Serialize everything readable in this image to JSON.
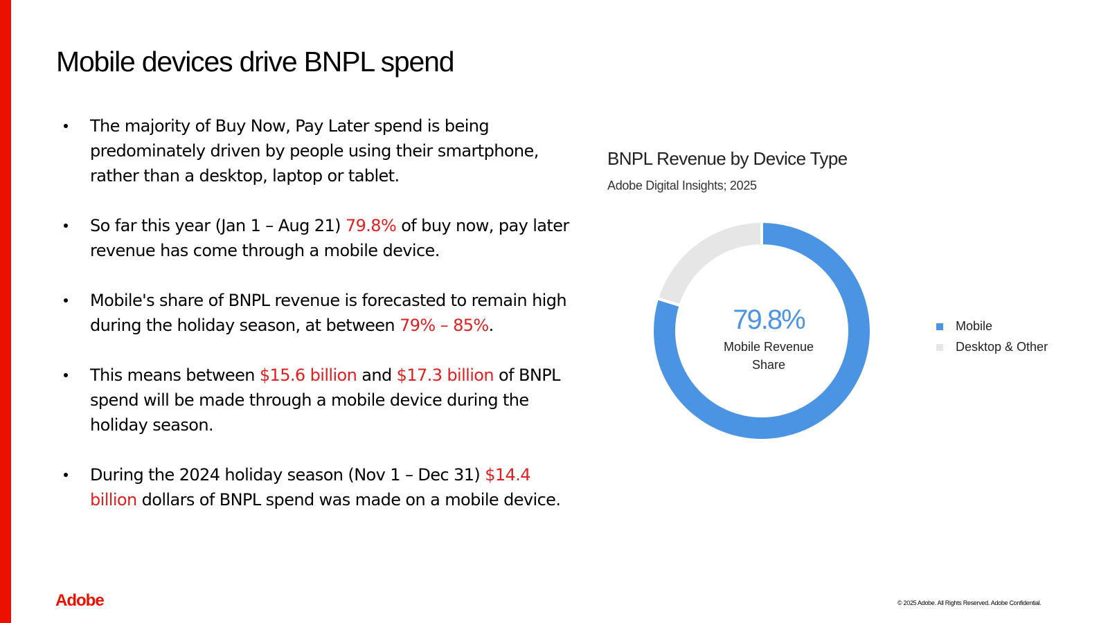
{
  "title": "Mobile devices drive BNPL spend",
  "colors": {
    "accent": "#eb1000",
    "highlight": "#e01f1f",
    "mobile": "#4b94e3",
    "desktop": "#e6e6e6"
  },
  "bullets": [
    {
      "parts": [
        {
          "t": "The majority of Buy Now, Pay Later spend is being predominately driven by people using their smartphone, rather than a desktop, laptop or tablet.",
          "hl": false
        }
      ]
    },
    {
      "parts": [
        {
          "t": "So far this year (Jan 1 – Aug 21) ",
          "hl": false
        },
        {
          "t": "79.8%",
          "hl": true
        },
        {
          "t": " of buy now, pay later revenue has come through a mobile device.",
          "hl": false
        }
      ]
    },
    {
      "parts": [
        {
          "t": "Mobile's share of BNPL revenue is forecasted to remain high during the holiday season, at between ",
          "hl": false
        },
        {
          "t": "79% – 85%",
          "hl": true
        },
        {
          "t": ".",
          "hl": false
        }
      ]
    },
    {
      "parts": [
        {
          "t": "This means between ",
          "hl": false
        },
        {
          "t": "$15.6 billion",
          "hl": true
        },
        {
          "t": " and ",
          "hl": false
        },
        {
          "t": "$17.3 billion",
          "hl": true
        },
        {
          "t": " of BNPL spend will be made through a mobile device during the holiday season.",
          "hl": false
        }
      ]
    },
    {
      "parts": [
        {
          "t": "During the 2024 holiday season (Nov 1 – Dec 31) ",
          "hl": false
        },
        {
          "t": "$14.4 billion",
          "hl": true
        },
        {
          "t": " dollars of BNPL spend was made on a mobile device.",
          "hl": false
        }
      ]
    }
  ],
  "chart_data": {
    "type": "pie",
    "title": "BNPL Revenue by Device Type",
    "subtitle": "Adobe Digital Insights; 2025",
    "categories": [
      "Mobile",
      "Desktop & Other"
    ],
    "values": [
      79.8,
      20.2
    ],
    "unit": "%",
    "colors": [
      "#4b94e3",
      "#e6e6e6"
    ],
    "center_value": "79.8%",
    "center_label_line1": "Mobile Revenue",
    "center_label_line2": "Share",
    "legend_position": "right"
  },
  "logo": "Adobe",
  "footer": "© 2025 Adobe. All Rights Reserved. Adobe Confidential."
}
